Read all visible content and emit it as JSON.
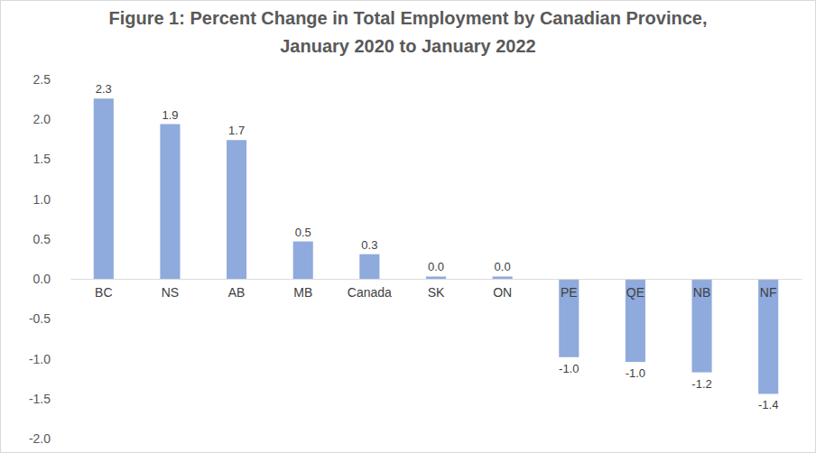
{
  "chart_data": {
    "type": "bar",
    "title": "Figure 1: Percent Change in Total Employment by Canadian Province, January 2020 to January 2022",
    "categories": [
      "BC",
      "NS",
      "AB",
      "MB",
      "Canada",
      "SK",
      "ON",
      "PE",
      "QE",
      "NB",
      "NF"
    ],
    "values": [
      2.26,
      1.94,
      1.74,
      0.47,
      0.31,
      0.03,
      0.03,
      -0.98,
      -1.04,
      -1.17,
      -1.44
    ],
    "value_labels": [
      "2.3",
      "1.9",
      "1.7",
      "0.5",
      "0.3",
      "0.0",
      "0.0",
      "-1.0",
      "-1.0",
      "-1.2",
      "-1.4"
    ],
    "data_labels": true,
    "color": "#8faadc",
    "ylim": [
      -2.0,
      2.5
    ],
    "yticks": [
      2.5,
      {
        "value": 2,
        "label": "2.0"
      },
      1.5,
      {
        "value": 1,
        "label": "1.0"
      },
      0.5,
      {
        "value": 0,
        "label": "0.0"
      },
      -0.5,
      {
        "value": -1,
        "label": "-1.0"
      },
      -1.5,
      {
        "value": -2,
        "label": "-2.0"
      }
    ],
    "grid": false
  }
}
